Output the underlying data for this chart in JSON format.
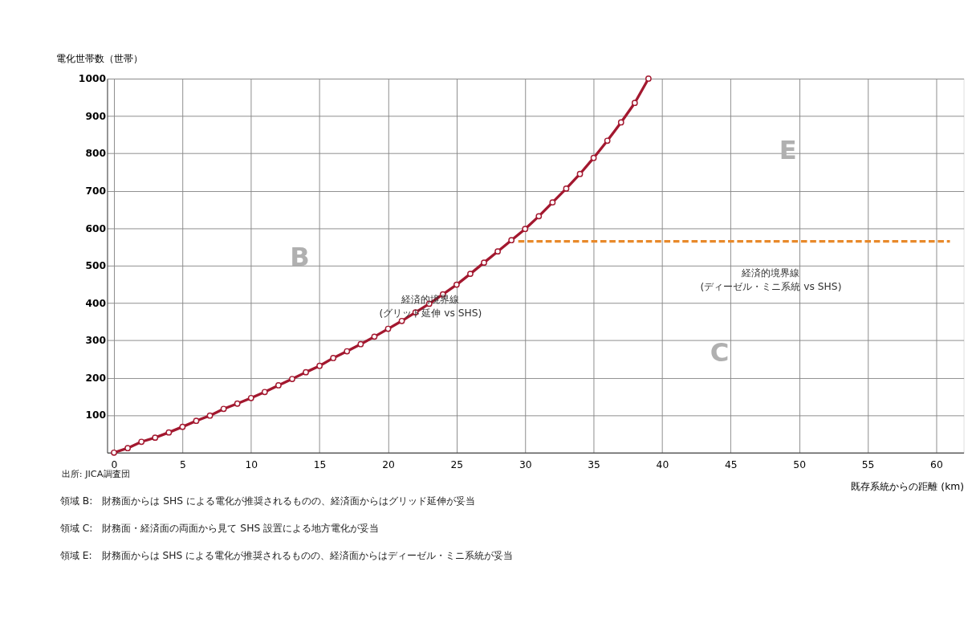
{
  "chart_data": {
    "type": "line",
    "ylabel": "電化世帯数（世帯）",
    "xlabel": "既存系統からの距離 (km)",
    "xlim": [
      -0.5,
      62
    ],
    "xticks": [
      0,
      5,
      10,
      15,
      20,
      25,
      30,
      35,
      40,
      45,
      50,
      55,
      60
    ],
    "ylim": [
      0,
      1000
    ],
    "yticks": [
      {
        "value": 0,
        "label": null
      },
      100,
      200,
      300,
      400,
      500,
      600,
      700,
      800,
      900,
      1000
    ],
    "grid": true,
    "series": [
      {
        "color": "#a3182f",
        "marker": "circle",
        "line_style": "solid",
        "x": [
          0,
          1,
          2,
          3,
          4,
          5,
          6,
          7,
          8,
          9,
          10,
          11,
          12,
          13,
          14,
          15,
          16,
          17,
          18,
          19,
          20,
          21,
          22,
          23,
          24,
          25,
          26,
          27,
          28,
          29,
          30,
          31,
          32,
          33,
          34,
          35,
          36,
          37,
          38,
          39
        ],
        "values": [
          0,
          12,
          29,
          40,
          54,
          69,
          85,
          99,
          117,
          131,
          146,
          162,
          180,
          197,
          215,
          232,
          253,
          271,
          290,
          310,
          331,
          352,
          375,
          398,
          423,
          449,
          478,
          508,
          538,
          568,
          598,
          632,
          669,
          706,
          745,
          788,
          834,
          883,
          935,
          1000
        ]
      },
      {
        "color": "#e8892a",
        "marker": "none",
        "line_style": "dashed",
        "x": [
          29.5,
          61
        ],
        "values": [
          565,
          565
        ]
      }
    ],
    "annotations": [
      {
        "text": "経済的境界線\n(グリッド延伸 vs SHS)",
        "x": 23.1,
        "y": 410
      },
      "B",
      "E",
      "C",
      "経済的境界線\n(ディーゼル・ミニ系統 vs SHS)",
      "出所: JICA調査団",
      "領域 B:　財務面からは SHS による電化が推奨されるものの、経済面からはグリッド延伸が妥当",
      "領域 C:　財務面・経済面の両面から見て SHS 設置による地方電化が妥当",
      "領域 E:　財務面からは SHS による電化が推奨されるものの、経済面からはディーゼル・ミニ系統が妥当"
    ]
  }
}
